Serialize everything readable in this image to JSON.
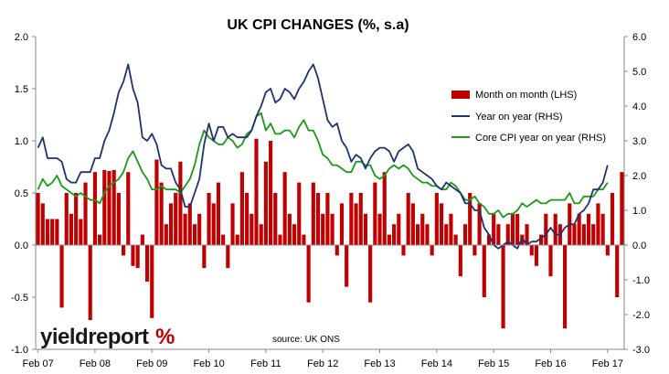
{
  "chart_data": {
    "type": "bar",
    "title": "UK CPI CHANGES (%, s.a)",
    "source": "source: UK ONS",
    "logo": {
      "text": "yieldreport",
      "symbol": "%"
    },
    "x_ticks": [
      "Feb 07",
      "Feb 08",
      "Feb 09",
      "Feb 10",
      "Feb 11",
      "Feb 12",
      "Feb 13",
      "Feb 14",
      "Feb 15",
      "Feb 16",
      "Feb 17"
    ],
    "y_left": {
      "range": [
        -1.0,
        2.0
      ],
      "ticks": [
        "2.0",
        "1.5",
        "1.0",
        "0.5",
        "0.0",
        "-0.5",
        "-1.0"
      ]
    },
    "y_right": {
      "range": [
        -3.0,
        6.0
      ],
      "ticks": [
        "6.0",
        "5.0",
        "4.0",
        "3.0",
        "2.0",
        "1.0",
        "0.0",
        "-1.0",
        "-2.0",
        "-3.0"
      ]
    },
    "colors": {
      "bar": "#c00000",
      "yoy": "#1f3370",
      "core": "#1a9a1a"
    },
    "series": [
      {
        "name": "Month on month (LHS)",
        "axis": "left",
        "kind": "bar",
        "values": [
          0.5,
          0.4,
          0.25,
          0.25,
          0.25,
          -0.6,
          0.5,
          0.3,
          0.5,
          0.25,
          0.6,
          -0.72,
          0.7,
          0.1,
          0.72,
          0.71,
          0.72,
          0.5,
          -0.1,
          0.7,
          -0.2,
          -0.22,
          0.1,
          -0.35,
          -0.7,
          0.82,
          0.6,
          0.2,
          0.4,
          0.5,
          0.8,
          0.3,
          0.4,
          0.2,
          0.3,
          -0.22,
          0.5,
          0.4,
          0.6,
          0.1,
          -0.22,
          0.4,
          0.1,
          0.7,
          0.5,
          0.3,
          1.02,
          0.2,
          0.8,
          1.0,
          0.5,
          0.1,
          0.7,
          0.3,
          0.2,
          0.6,
          0.1,
          -0.55,
          0.6,
          0.5,
          0.3,
          0.5,
          0.3,
          -0.1,
          0.4,
          -0.4,
          0.5,
          0.4,
          0.5,
          0.3,
          -0.55,
          0.6,
          0.3,
          0.7,
          0.1,
          0.2,
          0.3,
          -0.1,
          0.5,
          0.4,
          0.2,
          0.3,
          0.2,
          -0.1,
          0.5,
          0.4,
          0.2,
          0.3,
          0.1,
          -0.3,
          0.2,
          0.5,
          -0.1,
          0.4,
          -0.5,
          0.1,
          0.3,
          0.2,
          -0.8,
          0.2,
          0.3,
          0.3,
          0.1,
          0.2,
          -0.1,
          -0.2,
          0.1,
          0.3,
          -0.3,
          0.3,
          0.2,
          -0.8,
          0.4,
          0.2,
          0.3,
          0.2,
          0.3,
          0.2,
          0.4,
          0.3,
          -0.1,
          0.5,
          -0.5,
          0.7
        ]
      },
      {
        "name": "Year on year (RHS)",
        "axis": "right",
        "kind": "line",
        "x": [
          0,
          1,
          2,
          3,
          4,
          5,
          6,
          7,
          8,
          9,
          10,
          11,
          12,
          13,
          14,
          15,
          16,
          17,
          18,
          19,
          20,
          21,
          22,
          23,
          24,
          25,
          26,
          27,
          28,
          29,
          30,
          31,
          32,
          33,
          34,
          35,
          36,
          37,
          38,
          39,
          40,
          41,
          42,
          43,
          44,
          45,
          46,
          47,
          48,
          49,
          50,
          51,
          52,
          53,
          54,
          55,
          56,
          57,
          58,
          59,
          60,
          61,
          62,
          63,
          64,
          65,
          66,
          67,
          68,
          69,
          70,
          71,
          72,
          73,
          74,
          75,
          76,
          77,
          78,
          79,
          80,
          81,
          82,
          83,
          84,
          85,
          86,
          87,
          88,
          89,
          90,
          91,
          92,
          93,
          94,
          95,
          96,
          97,
          98,
          99,
          100,
          101,
          102,
          103,
          104,
          105,
          106,
          107,
          108,
          109,
          110,
          111,
          112,
          113,
          114,
          115,
          116,
          117,
          118,
          119,
          120
        ],
        "values": [
          2.8,
          3.1,
          2.5,
          2.5,
          2.5,
          2.4,
          1.9,
          1.8,
          1.8,
          2.1,
          2.1,
          2.1,
          2.5,
          2.5,
          3.0,
          3.3,
          3.8,
          4.4,
          4.7,
          5.2,
          4.5,
          4.1,
          3.1,
          3.0,
          3.2,
          2.9,
          2.3,
          2.2,
          2.2,
          1.8,
          1.6,
          1.1,
          1.1,
          1.5,
          1.9,
          2.9,
          3.5,
          3.0,
          3.4,
          3.4,
          3.1,
          3.2,
          3.1,
          3.1,
          3.1,
          3.3,
          3.7,
          4.0,
          4.4,
          4.5,
          4.1,
          4.2,
          4.5,
          4.4,
          4.2,
          4.5,
          4.7,
          5.0,
          5.2,
          4.8,
          4.2,
          3.6,
          3.4,
          3.5,
          3.0,
          2.8,
          2.4,
          2.6,
          2.5,
          2.2,
          2.5,
          2.7,
          2.8,
          2.8,
          2.7,
          2.4,
          2.7,
          2.8,
          2.9,
          2.7,
          2.2,
          2.1,
          2.0,
          1.9,
          1.7,
          1.6,
          1.8,
          1.7,
          1.6,
          1.5,
          1.2,
          1.2,
          1.0,
          1.0,
          0.5,
          0.3,
          0.0,
          -0.1,
          0.0,
          0.1,
          0.0,
          -0.1,
          0.2,
          0.0,
          0.1,
          0.1,
          0.2,
          0.3,
          0.5,
          0.3,
          0.3,
          0.5,
          0.6,
          0.6,
          0.9,
          1.0,
          1.2,
          1.6,
          1.6,
          1.8,
          2.3
        ]
      },
      {
        "name": "Core CPI year on year (RHS)",
        "axis": "right",
        "kind": "line",
        "x": [
          0,
          1,
          2,
          3,
          4,
          5,
          6,
          7,
          8,
          9,
          10,
          11,
          12,
          13,
          14,
          15,
          16,
          17,
          18,
          19,
          20,
          21,
          22,
          23,
          24,
          25,
          26,
          27,
          28,
          29,
          30,
          31,
          32,
          33,
          34,
          35,
          36,
          37,
          38,
          39,
          40,
          41,
          42,
          43,
          44,
          45,
          46,
          47,
          48,
          49,
          50,
          51,
          52,
          53,
          54,
          55,
          56,
          57,
          58,
          59,
          60,
          61,
          62,
          63,
          64,
          65,
          66,
          67,
          68,
          69,
          70,
          71,
          72,
          73,
          74,
          75,
          76,
          77,
          78,
          79,
          80,
          81,
          82,
          83,
          84,
          85,
          86,
          87,
          88,
          89,
          90,
          91,
          92,
          93,
          94,
          95,
          96,
          97,
          98,
          99,
          100,
          101,
          102,
          103,
          104,
          105,
          106,
          107,
          108,
          109,
          110,
          111,
          112,
          113,
          114,
          115,
          116,
          117,
          118,
          119,
          120
        ],
        "values": [
          1.6,
          1.9,
          1.7,
          1.8,
          2.0,
          1.7,
          1.6,
          1.5,
          1.4,
          1.5,
          1.4,
          1.3,
          1.3,
          1.2,
          1.5,
          1.7,
          1.8,
          1.9,
          2.1,
          2.5,
          2.7,
          2.4,
          2.1,
          1.9,
          1.6,
          1.6,
          1.7,
          1.6,
          1.6,
          1.6,
          1.5,
          1.7,
          1.9,
          2.3,
          2.9,
          3.3,
          3.1,
          3.0,
          2.9,
          2.9,
          3.1,
          3.0,
          2.8,
          2.9,
          3.2,
          3.3,
          3.7,
          3.8,
          3.3,
          3.5,
          3.2,
          3.2,
          3.3,
          3.3,
          3.1,
          3.4,
          3.6,
          3.3,
          3.3,
          3.0,
          2.6,
          2.5,
          2.3,
          2.3,
          2.2,
          2.1,
          2.1,
          2.4,
          2.4,
          2.3,
          2.3,
          2.0,
          1.9,
          2.0,
          2.2,
          2.3,
          2.2,
          2.3,
          2.2,
          2.0,
          1.9,
          1.8,
          1.8,
          1.7,
          1.7,
          1.6,
          1.6,
          1.8,
          1.7,
          1.5,
          1.3,
          1.3,
          1.4,
          1.2,
          1.1,
          0.9,
          0.9,
          1.0,
          0.8,
          0.9,
          0.9,
          1.0,
          1.2,
          1.1,
          1.2,
          1.3,
          1.2,
          1.2,
          1.3,
          1.3,
          1.3,
          1.3,
          1.5,
          1.2,
          1.2,
          1.4,
          1.4,
          1.4,
          1.6,
          1.6,
          1.8
        ]
      }
    ],
    "legend_position": "right-middle",
    "grid": false
  }
}
